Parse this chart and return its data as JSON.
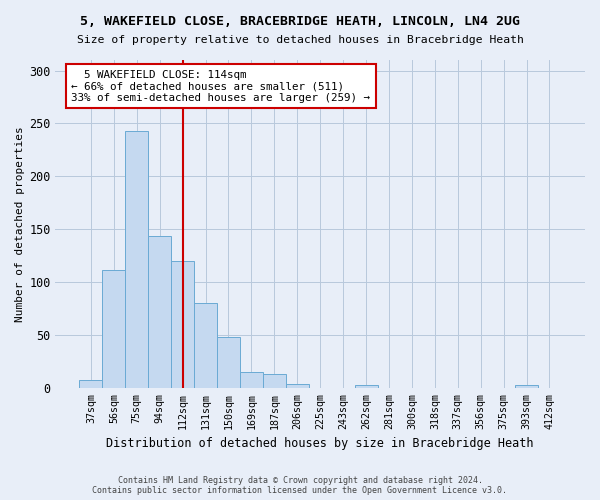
{
  "title1": "5, WAKEFIELD CLOSE, BRACEBRIDGE HEATH, LINCOLN, LN4 2UG",
  "title2": "Size of property relative to detached houses in Bracebridge Heath",
  "xlabel": "Distribution of detached houses by size in Bracebridge Heath",
  "ylabel": "Number of detached properties",
  "annotation_line1": "  5 WAKEFIELD CLOSE: 114sqm",
  "annotation_line2": "← 66% of detached houses are smaller (511)",
  "annotation_line3": "33% of semi-detached houses are larger (259) →",
  "footer1": "Contains HM Land Registry data © Crown copyright and database right 2024.",
  "footer2": "Contains public sector information licensed under the Open Government Licence v3.0.",
  "bar_color": "#c5d9f0",
  "bar_edge_color": "#6aaad4",
  "highlight_color": "#cc0000",
  "background_color": "#e8eef8",
  "grid_color": "#b8c8dc",
  "categories": [
    "37sqm",
    "56sqm",
    "75sqm",
    "94sqm",
    "112sqm",
    "131sqm",
    "150sqm",
    "169sqm",
    "187sqm",
    "206sqm",
    "225sqm",
    "243sqm",
    "262sqm",
    "281sqm",
    "300sqm",
    "318sqm",
    "337sqm",
    "356sqm",
    "375sqm",
    "393sqm",
    "412sqm"
  ],
  "values": [
    7,
    111,
    243,
    144,
    120,
    80,
    48,
    15,
    13,
    4,
    0,
    0,
    3,
    0,
    0,
    0,
    0,
    0,
    0,
    3,
    0
  ],
  "vline_index": 4,
  "ylim": [
    0,
    310
  ],
  "yticks": [
    0,
    50,
    100,
    150,
    200,
    250,
    300
  ]
}
